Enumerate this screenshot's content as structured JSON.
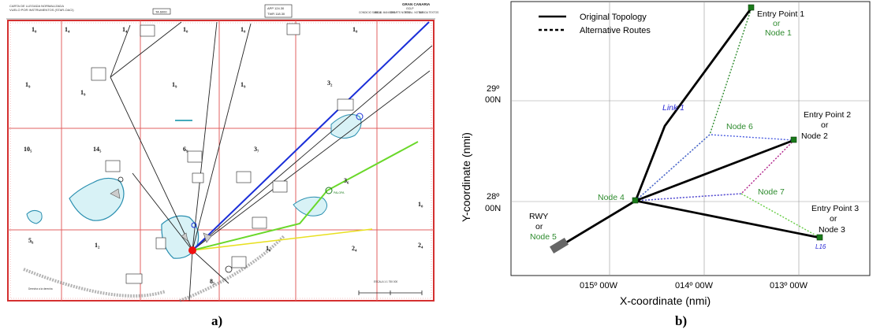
{
  "panel_a": {
    "caption": "a)",
    "chart_title": "CARTA DE LLEGADA NORMALIZADA",
    "chart_subtitle": "VUELO POR INSTRUMENTOS (STAR-OACI)",
    "center_code": "TA 6000",
    "app_freq": "APP 124.30",
    "twr_freq": "TWR 118.30",
    "airport": "GRAN CANARIA",
    "airport_code": "GCLP",
    "header_cols": [
      "CONDICIO SUBIDA",
      "BALIZ. MANIOBR.",
      "CHARTS NOTES",
      "NOVAL. NOTAS",
      "SUBIDA TEXTOS"
    ],
    "sector_labels": [
      "1₀",
      "1₄",
      "1₄",
      "1₀",
      "1₀",
      "1₀",
      "1₉",
      "1₉",
      "1₉",
      "1₉",
      "3₂",
      "10₅",
      "14₅",
      "6₉",
      "3₇",
      "3₆",
      "1₀",
      "5₆",
      "1₂",
      "1₀",
      "2₄",
      "2₄",
      "8₅"
    ],
    "green_waypoint_label": "PALOPA",
    "scale_note": "ESCALA 1:1 750 000",
    "bottom_note": "Derecha a la derecha"
  },
  "panel_b": {
    "caption": "b)",
    "legend": [
      "Original Topology",
      "Alternative Routes"
    ],
    "xlabel": "X-coordinate (nmi)",
    "ylabel": "Y-coordinate (nmi)",
    "xticks": [
      "015º 00W",
      "014º 00W",
      "013º 00W"
    ],
    "yticks": [
      [
        "29º",
        "00N"
      ],
      [
        "28º",
        "00N"
      ]
    ],
    "labels": {
      "entry1": [
        "Entry Point 1",
        "or",
        "Node  1"
      ],
      "entry2": [
        "Entry Point 2",
        "or",
        "Node 2"
      ],
      "entry3": [
        "Entry Point 3",
        "or",
        "Node 3"
      ],
      "rwy": [
        "RWY",
        "or",
        "Node 5"
      ],
      "node4": "Node  4",
      "node6": "Node  6",
      "node7": "Node  7",
      "link1": "Link 1",
      "l16": "L16"
    },
    "colors": {
      "green_text": "#2e8b2e",
      "blue_text": "#2b2bd6",
      "node_fill": "#1a7a1a",
      "dotted_green": "#2e8b2e",
      "dotted_blue": "#4d5fe0",
      "dotted_magenta": "#b0208a",
      "dotted_lightgreen": "#66cc44"
    }
  }
}
